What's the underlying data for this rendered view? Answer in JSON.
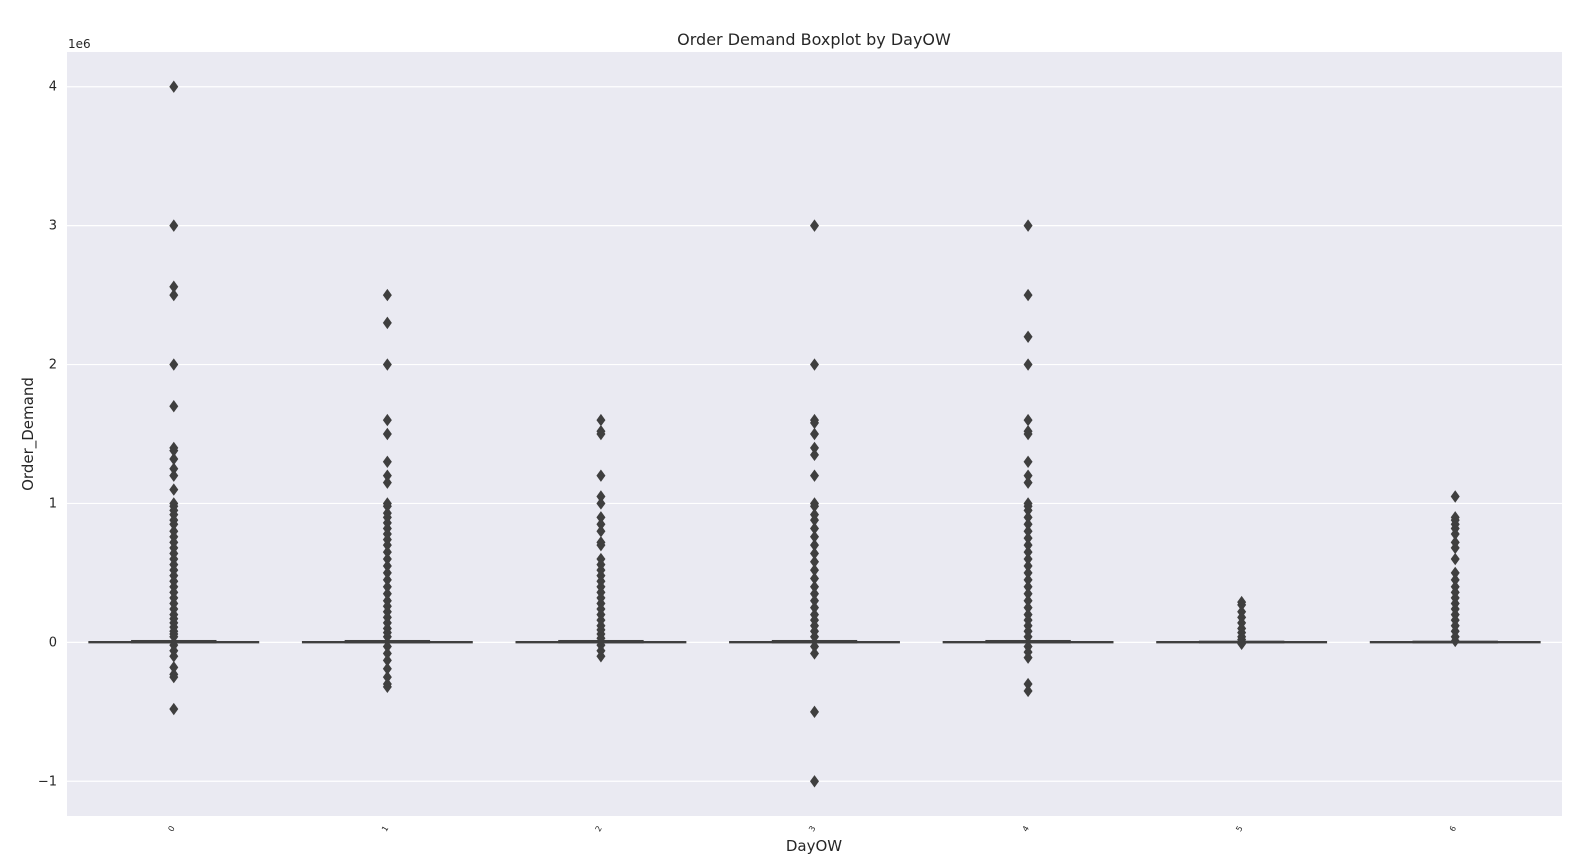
{
  "chart_data": {
    "type": "boxplot",
    "title": "Order Demand Boxplot by DayOW",
    "xlabel": "DayOW",
    "ylabel": "Order_Demand",
    "y_offset_label": "1e6",
    "y_scale": 1000000,
    "ylim": [
      -1250000,
      4250000
    ],
    "y_ticks": [
      -1000000,
      0,
      1000000,
      2000000,
      3000000,
      4000000
    ],
    "y_tick_labels": [
      "−1",
      "0",
      "1",
      "2",
      "3",
      "4"
    ],
    "grid": true,
    "colors": {
      "plot_bg": "#eaeaf2",
      "grid": "#ffffff",
      "box": "#3f3f3f",
      "text": "#262626"
    },
    "categories": [
      "0",
      "1",
      "2",
      "3",
      "4",
      "5",
      "6"
    ],
    "boxes": [
      {
        "category": "0",
        "whisker_low": 0,
        "q1": 0,
        "median": 1000,
        "q3": 10000,
        "whisker_high": 12000,
        "outliers": [
          4000000,
          3000000,
          2560000,
          2500000,
          2000000,
          1700000,
          1400000,
          1380000,
          1320000,
          1250000,
          1200000,
          1100000,
          1000000,
          980000,
          950000,
          920000,
          880000,
          850000,
          800000,
          760000,
          720000,
          680000,
          640000,
          600000,
          560000,
          520000,
          480000,
          440000,
          400000,
          360000,
          320000,
          280000,
          240000,
          200000,
          170000,
          140000,
          110000,
          80000,
          60000,
          40000,
          -20000,
          -60000,
          -100000,
          -180000,
          -230000,
          -250000,
          -480000
        ]
      },
      {
        "category": "1",
        "whisker_low": 0,
        "q1": 0,
        "median": 1000,
        "q3": 10000,
        "whisker_high": 12000,
        "outliers": [
          2500000,
          2300000,
          2000000,
          1600000,
          1500000,
          1300000,
          1200000,
          1150000,
          1000000,
          980000,
          930000,
          900000,
          860000,
          820000,
          780000,
          740000,
          700000,
          650000,
          600000,
          550000,
          500000,
          450000,
          400000,
          350000,
          300000,
          260000,
          220000,
          180000,
          140000,
          100000,
          70000,
          40000,
          -30000,
          -80000,
          -130000,
          -190000,
          -250000,
          -300000,
          -320000
        ]
      },
      {
        "category": "2",
        "whisker_low": 0,
        "q1": 0,
        "median": 1000,
        "q3": 10000,
        "whisker_high": 12000,
        "outliers": [
          1600000,
          1520000,
          1500000,
          1200000,
          1050000,
          1000000,
          900000,
          850000,
          800000,
          720000,
          700000,
          600000,
          560000,
          520000,
          480000,
          440000,
          400000,
          360000,
          320000,
          280000,
          240000,
          200000,
          160000,
          120000,
          90000,
          60000,
          30000,
          -20000,
          -60000,
          -100000
        ]
      },
      {
        "category": "3",
        "whisker_low": 0,
        "q1": 0,
        "median": 1000,
        "q3": 10000,
        "whisker_high": 12000,
        "outliers": [
          3000000,
          2000000,
          1600000,
          1580000,
          1500000,
          1400000,
          1350000,
          1200000,
          1000000,
          980000,
          920000,
          880000,
          820000,
          760000,
          700000,
          640000,
          580000,
          520000,
          460000,
          400000,
          350000,
          300000,
          250000,
          200000,
          160000,
          120000,
          80000,
          40000,
          -30000,
          -80000,
          -500000,
          -1000000
        ]
      },
      {
        "category": "4",
        "whisker_low": 0,
        "q1": 0,
        "median": 1000,
        "q3": 10000,
        "whisker_high": 12000,
        "outliers": [
          3000000,
          2500000,
          2200000,
          2000000,
          1600000,
          1520000,
          1500000,
          1300000,
          1200000,
          1150000,
          1000000,
          980000,
          950000,
          900000,
          850000,
          800000,
          750000,
          700000,
          650000,
          600000,
          550000,
          500000,
          450000,
          400000,
          350000,
          300000,
          250000,
          200000,
          160000,
          120000,
          80000,
          40000,
          -30000,
          -70000,
          -110000,
          -300000,
          -350000
        ]
      },
      {
        "category": "5",
        "whisker_low": 0,
        "q1": 0,
        "median": 1000,
        "q3": 5000,
        "whisker_high": 8000,
        "outliers": [
          290000,
          270000,
          220000,
          180000,
          140000,
          100000,
          70000,
          40000,
          20000,
          -10000
        ]
      },
      {
        "category": "6",
        "whisker_low": 0,
        "q1": 0,
        "median": 1000,
        "q3": 5000,
        "whisker_high": 8000,
        "outliers": [
          1050000,
          900000,
          880000,
          850000,
          820000,
          780000,
          720000,
          680000,
          600000,
          500000,
          450000,
          400000,
          360000,
          320000,
          280000,
          240000,
          200000,
          160000,
          120000,
          80000,
          40000,
          10000
        ]
      }
    ]
  }
}
